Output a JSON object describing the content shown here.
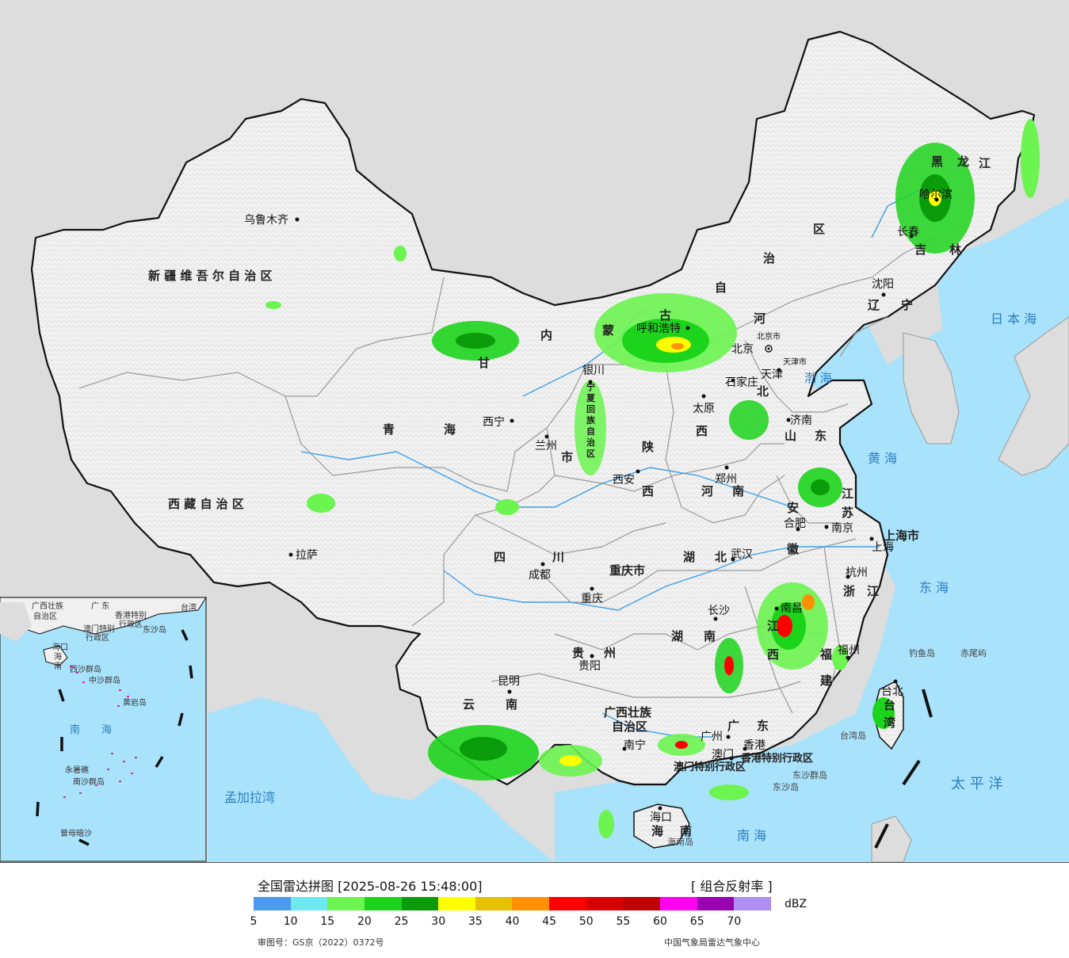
{
  "map": {
    "province_labels": [
      {
        "text": "新 疆 维 吾 尔 自 治 区"
      },
      {
        "text": "西 藏 自 治 区"
      },
      {
        "text": "青"
      },
      {
        "text": "海"
      },
      {
        "text": "甘"
      },
      {
        "text": "内"
      },
      {
        "text": "蒙"
      },
      {
        "text": "古"
      },
      {
        "text": "自"
      },
      {
        "text": "治"
      },
      {
        "text": "区"
      },
      {
        "text": "黑"
      },
      {
        "text": "龙"
      },
      {
        "text": "江"
      },
      {
        "text": "吉"
      },
      {
        "text": "林"
      },
      {
        "text": "辽"
      },
      {
        "text": "宁"
      },
      {
        "text": "河"
      },
      {
        "text": "北"
      },
      {
        "text": "山"
      },
      {
        "text": "东"
      },
      {
        "text": "西"
      },
      {
        "text": "陕"
      },
      {
        "text": "西"
      },
      {
        "text": "河"
      },
      {
        "text": "南"
      },
      {
        "text": "江"
      },
      {
        "text": "苏"
      },
      {
        "text": "安"
      },
      {
        "text": "徽"
      },
      {
        "text": "四"
      },
      {
        "text": "川"
      },
      {
        "text": "湖"
      },
      {
        "text": "北"
      },
      {
        "text": "重庆市"
      },
      {
        "text": "湖"
      },
      {
        "text": "南"
      },
      {
        "text": "江"
      },
      {
        "text": "西"
      },
      {
        "text": "浙"
      },
      {
        "text": "江"
      },
      {
        "text": "福"
      },
      {
        "text": "建"
      },
      {
        "text": "贵"
      },
      {
        "text": "州"
      },
      {
        "text": "云"
      },
      {
        "text": "南"
      },
      {
        "text": "广西壮族"
      },
      {
        "text": "自治区"
      },
      {
        "text": "广"
      },
      {
        "text": "东"
      },
      {
        "text": "海"
      },
      {
        "text": "南"
      },
      {
        "text": "上海市"
      },
      {
        "text": "香港特别行政区"
      },
      {
        "text": "澳门特别行政区"
      },
      {
        "text": "台"
      },
      {
        "text": "湾"
      },
      {
        "text": "宁"
      },
      {
        "text": "夏"
      },
      {
        "text": "回"
      },
      {
        "text": "族"
      },
      {
        "text": "自"
      },
      {
        "text": "治"
      },
      {
        "text": "区"
      },
      {
        "text": "市"
      }
    ],
    "cities": [
      {
        "name": "乌鲁木齐"
      },
      {
        "name": "拉萨"
      },
      {
        "name": "西宁"
      },
      {
        "name": "兰州"
      },
      {
        "name": "银川"
      },
      {
        "name": "呼和浩特"
      },
      {
        "name": "北京"
      },
      {
        "name": "北京市"
      },
      {
        "name": "天津"
      },
      {
        "name": "天津市"
      },
      {
        "name": "石家庄"
      },
      {
        "name": "太原"
      },
      {
        "name": "济南"
      },
      {
        "name": "西安"
      },
      {
        "name": "郑州"
      },
      {
        "name": "合肥"
      },
      {
        "name": "南京"
      },
      {
        "name": "上海"
      },
      {
        "name": "杭州"
      },
      {
        "name": "武汉"
      },
      {
        "name": "成都"
      },
      {
        "name": "重庆"
      },
      {
        "name": "长沙"
      },
      {
        "name": "南昌"
      },
      {
        "name": "福州"
      },
      {
        "name": "贵阳"
      },
      {
        "name": "昆明"
      },
      {
        "name": "南宁"
      },
      {
        "name": "广州"
      },
      {
        "name": "香港"
      },
      {
        "name": "澳门"
      },
      {
        "name": "海口"
      },
      {
        "name": "台北"
      },
      {
        "name": "哈尔滨"
      },
      {
        "name": "长春"
      },
      {
        "name": "沈阳"
      }
    ],
    "sea_labels": [
      {
        "text": "日 本 海"
      },
      {
        "text": "渤 海"
      },
      {
        "text": "黄 海"
      },
      {
        "text": "东 海"
      },
      {
        "text": "太 平 洋"
      },
      {
        "text": "南 海"
      },
      {
        "text": "孟加拉湾"
      },
      {
        "text": "台湾岛"
      },
      {
        "text": "海南岛"
      },
      {
        "text": "钓鱼岛"
      },
      {
        "text": "赤尾屿"
      },
      {
        "text": "东沙群岛"
      },
      {
        "text": "东沙岛"
      }
    ],
    "inset": {
      "labels": [
        {
          "text": "广西壮族"
        },
        {
          "text": "自治区"
        },
        {
          "text": "广 东"
        },
        {
          "text": "香港特别"
        },
        {
          "text": "行政区"
        },
        {
          "text": "澳门特别"
        },
        {
          "text": "行政区"
        },
        {
          "text": "东沙岛"
        },
        {
          "text": "海口"
        },
        {
          "text": "海"
        },
        {
          "text": "南"
        },
        {
          "text": "西沙群岛"
        },
        {
          "text": "中沙群岛"
        },
        {
          "text": "黄岩岛"
        },
        {
          "text": "南"
        },
        {
          "text": "海"
        },
        {
          "text": "永暑礁"
        },
        {
          "text": "南沙群岛"
        },
        {
          "text": "曾母暗沙"
        },
        {
          "text": "台湾"
        }
      ]
    },
    "colors": {
      "sea": "#a9e2fb",
      "land_china": "#f0f0f0",
      "land_other": "#dddddd",
      "border": "#111111",
      "province_border": "#9a9a9a",
      "river": "#3fa0e8"
    }
  },
  "legend": {
    "title": "全国雷达拼图 [2025-08-26 15:48:00]",
    "product": "[ 组合反射率 ]",
    "unit": "dBZ",
    "ticks": [
      "5",
      "10",
      "15",
      "20",
      "25",
      "30",
      "35",
      "40",
      "45",
      "50",
      "55",
      "60",
      "65",
      "70"
    ],
    "colors": [
      "#4a9bef",
      "#6de8ef",
      "#6cf450",
      "#1dd41c",
      "#0a9c0a",
      "#ffff00",
      "#e5c100",
      "#ff9000",
      "#ff0000",
      "#d60000",
      "#c00000",
      "#ff00f0",
      "#9800b0",
      "#ae8ef0"
    ],
    "approval": "审图号：GS京（2022）0372号",
    "publisher": "中国气象局雷达气象中心"
  }
}
